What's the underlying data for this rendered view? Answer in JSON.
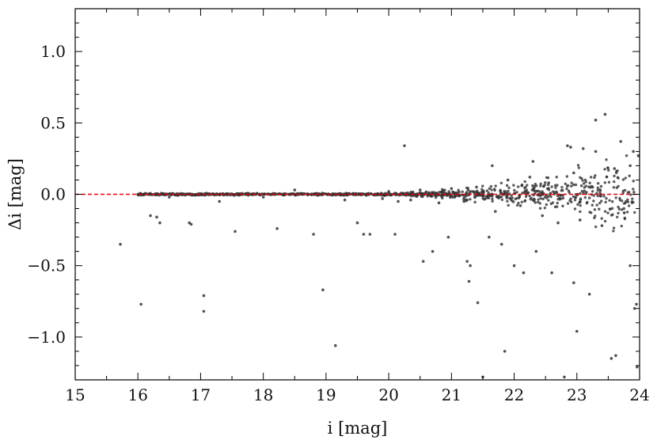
{
  "chart_data": {
    "type": "scatter",
    "xlabel": "i [mag]",
    "ylabel": "Δi [mag]",
    "xlim": [
      15,
      24
    ],
    "ylim": [
      -1.3,
      1.3
    ],
    "x_ticks": [
      15,
      16,
      17,
      18,
      19,
      20,
      21,
      22,
      23,
      24
    ],
    "x_tick_labels": [
      "15",
      "16",
      "17",
      "18",
      "19",
      "20",
      "21",
      "22",
      "23",
      "24"
    ],
    "y_ticks": [
      -1.0,
      -0.5,
      0.0,
      0.5,
      1.0
    ],
    "y_tick_labels": [
      "−1.0",
      "−0.5",
      "0.0",
      "0.5",
      "1.0"
    ],
    "reference_line": {
      "y": 0.0,
      "style": "dashed",
      "color": "#e8000b"
    },
    "marker_color": "#333333",
    "grid": false,
    "series": [
      {
        "points": [
          [
            15.72,
            -0.35
          ],
          [
            16.05,
            -0.77
          ],
          [
            16.2,
            -0.15
          ],
          [
            16.3,
            -0.16
          ],
          [
            16.35,
            -0.2
          ],
          [
            16.82,
            -0.2
          ],
          [
            16.85,
            -0.21
          ],
          [
            17.05,
            -0.71
          ],
          [
            17.05,
            -0.82
          ],
          [
            17.55,
            -0.26
          ],
          [
            18.22,
            -0.24
          ],
          [
            18.8,
            -0.28
          ],
          [
            18.95,
            -0.67
          ],
          [
            19.15,
            -1.06
          ],
          [
            19.5,
            -0.2
          ],
          [
            19.6,
            -0.28
          ],
          [
            19.7,
            -0.28
          ],
          [
            20.1,
            -0.28
          ],
          [
            20.25,
            0.34
          ],
          [
            20.55,
            -0.47
          ],
          [
            20.7,
            -0.4
          ],
          [
            20.95,
            -0.3
          ],
          [
            21.25,
            -0.47
          ],
          [
            21.3,
            -0.5
          ],
          [
            21.28,
            -0.61
          ],
          [
            21.42,
            -0.76
          ],
          [
            21.5,
            -1.28
          ],
          [
            21.6,
            -0.3
          ],
          [
            21.65,
            0.2
          ],
          [
            21.8,
            -0.35
          ],
          [
            21.85,
            -1.1
          ],
          [
            22.0,
            -0.5
          ],
          [
            22.15,
            -0.55
          ],
          [
            22.3,
            0.23
          ],
          [
            22.35,
            -0.4
          ],
          [
            22.6,
            -0.55
          ],
          [
            22.8,
            -1.28
          ],
          [
            22.95,
            -0.62
          ],
          [
            23.0,
            -0.96
          ],
          [
            23.1,
            0.32
          ],
          [
            23.2,
            -0.7
          ],
          [
            23.3,
            0.52
          ],
          [
            23.45,
            0.56
          ],
          [
            23.55,
            -1.15
          ],
          [
            23.62,
            -1.13
          ],
          [
            23.7,
            0.37
          ],
          [
            23.85,
            -0.5
          ],
          [
            23.9,
            0.3
          ],
          [
            23.92,
            -0.8
          ],
          [
            23.95,
            -0.77
          ],
          [
            23.96,
            -1.21
          ],
          [
            23.98,
            0.27
          ],
          [
            22.85,
            0.34
          ],
          [
            22.9,
            0.33
          ],
          [
            23.3,
            0.3
          ],
          [
            21.2,
            -0.05
          ],
          [
            21.4,
            0.05
          ],
          [
            21.7,
            -0.12
          ],
          [
            21.9,
            0.1
          ],
          [
            22.1,
            -0.08
          ],
          [
            22.25,
            0.12
          ],
          [
            22.45,
            -0.15
          ],
          [
            22.55,
            0.08
          ],
          [
            22.7,
            -0.2
          ],
          [
            22.95,
            0.15
          ],
          [
            23.05,
            -0.18
          ],
          [
            23.25,
            0.05
          ],
          [
            23.4,
            -0.22
          ],
          [
            23.6,
            0.18
          ],
          [
            23.75,
            -0.1
          ],
          [
            23.85,
            0.2
          ],
          [
            20.35,
            -0.04
          ],
          [
            20.5,
            0.03
          ],
          [
            20.8,
            -0.06
          ],
          [
            21.0,
            0.04
          ],
          [
            19.9,
            -0.03
          ],
          [
            20.0,
            0.02
          ],
          [
            20.15,
            -0.05
          ],
          [
            16.5,
            -0.02
          ],
          [
            17.3,
            -0.05
          ],
          [
            18.0,
            -0.02
          ],
          [
            18.5,
            0.03
          ],
          [
            19.3,
            -0.04
          ]
        ]
      }
    ]
  }
}
